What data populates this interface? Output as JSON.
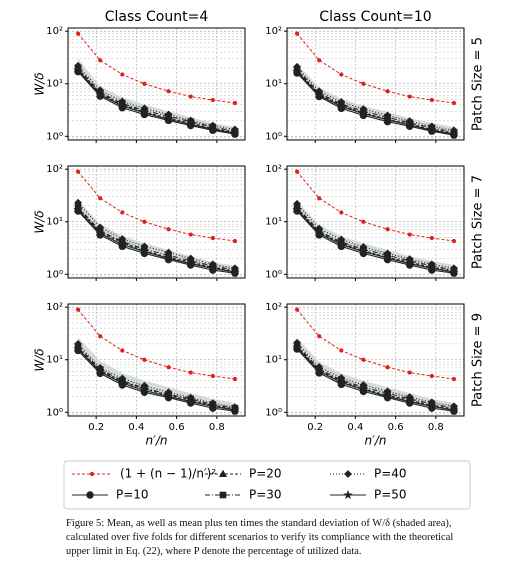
{
  "columns": [
    "Class Count=4",
    "Class Count=10"
  ],
  "rows": [
    "Patch Size = 5",
    "Patch Size = 7",
    "Patch Size = 9"
  ],
  "ylabel": "W/δ",
  "xlabel": "n′/n",
  "legend": [
    {
      "name": "(1 + (n − 1)/n′)²",
      "color": "#e0201b",
      "marker": "dot",
      "dash": "3,2"
    },
    {
      "name": "P=10",
      "color": "#222222",
      "marker": "circle",
      "dash": ""
    },
    {
      "name": "P=20",
      "color": "#222222",
      "marker": "triangle",
      "dash": "3,2"
    },
    {
      "name": "P=30",
      "color": "#222222",
      "marker": "square",
      "dash": "5,2,1,2"
    },
    {
      "name": "P=40",
      "color": "#222222",
      "marker": "diamond",
      "dash": "1,2"
    },
    {
      "name": "P=50",
      "color": "#222222",
      "marker": "star",
      "dash": ""
    }
  ],
  "band_color": "#c9d2d6",
  "caption": "Figure 5: Mean, as well as mean plus ten times the standard deviation of W/δ (shaded area), calculated over five folds for different scenarios to verify its compliance with the theoretical upper limit in Eq. (22), where P denote the percentage of utilized data.",
  "chart_data": [
    {
      "type": "line",
      "log_y": true,
      "grid": true,
      "x": [
        0.11,
        0.22,
        0.33,
        0.44,
        0.56,
        0.67,
        0.78,
        0.89
      ],
      "xlim": [
        0.06,
        0.94
      ],
      "xticks": [
        0.2,
        0.4,
        0.6,
        0.8
      ],
      "ylim": [
        0.85,
        115
      ],
      "yticks": [
        {
          "value": 1,
          "label": "10⁰"
        },
        {
          "value": 10,
          "label": "10¹"
        },
        {
          "value": 100,
          "label": "10²"
        }
      ],
      "band": [
        30,
        9,
        5.5,
        4,
        3,
        2.3,
        1.8,
        1.5
      ],
      "series": [
        {
          "values": [
            90,
            28,
            15,
            10,
            7.2,
            5.7,
            4.9,
            4.3
          ]
        },
        {
          "values": [
            17,
            5.8,
            3.5,
            2.6,
            2.0,
            1.6,
            1.3,
            1.1
          ]
        },
        {
          "values": [
            19,
            6.5,
            4.0,
            2.9,
            2.2,
            1.8,
            1.4,
            1.2
          ]
        },
        {
          "values": [
            20,
            6.8,
            4.2,
            3.1,
            2.4,
            1.9,
            1.5,
            1.25
          ]
        },
        {
          "values": [
            22,
            7.5,
            4.6,
            3.4,
            2.6,
            2.0,
            1.6,
            1.35
          ]
        },
        {
          "values": [
            18,
            6.2,
            3.8,
            2.8,
            2.1,
            1.7,
            1.35,
            1.15
          ]
        }
      ]
    },
    {
      "type": "line",
      "log_y": true,
      "grid": true,
      "x": [
        0.11,
        0.22,
        0.33,
        0.44,
        0.56,
        0.67,
        0.78,
        0.89
      ],
      "xlim": [
        0.06,
        0.94
      ],
      "xticks": [
        0.2,
        0.4,
        0.6,
        0.8
      ],
      "ylim": [
        0.85,
        115
      ],
      "yticks": [
        {
          "value": 1,
          "label": "10⁰"
        },
        {
          "value": 10,
          "label": "10¹"
        },
        {
          "value": 100,
          "label": "10²"
        }
      ],
      "band": [
        24,
        8.5,
        5.2,
        3.8,
        2.9,
        2.2,
        1.8,
        1.5
      ],
      "series": [
        {
          "values": [
            90,
            28,
            15,
            10,
            7.2,
            5.7,
            4.9,
            4.3
          ]
        },
        {
          "values": [
            16,
            5.7,
            3.4,
            2.5,
            1.9,
            1.55,
            1.25,
            1.05
          ]
        },
        {
          "values": [
            18,
            6.3,
            3.9,
            2.8,
            2.1,
            1.7,
            1.35,
            1.15
          ]
        },
        {
          "values": [
            19,
            6.6,
            4.1,
            3.0,
            2.3,
            1.8,
            1.45,
            1.2
          ]
        },
        {
          "values": [
            21,
            7.2,
            4.5,
            3.3,
            2.5,
            1.95,
            1.55,
            1.3
          ]
        },
        {
          "values": [
            17,
            6.0,
            3.7,
            2.7,
            2.05,
            1.65,
            1.3,
            1.1
          ]
        }
      ]
    },
    {
      "type": "line",
      "log_y": true,
      "grid": true,
      "x": [
        0.11,
        0.22,
        0.33,
        0.44,
        0.56,
        0.67,
        0.78,
        0.89
      ],
      "xlim": [
        0.06,
        0.94
      ],
      "xticks": [
        0.2,
        0.4,
        0.6,
        0.8
      ],
      "ylim": [
        0.85,
        115
      ],
      "yticks": [
        {
          "value": 1,
          "label": "10⁰"
        },
        {
          "value": 10,
          "label": "10¹"
        },
        {
          "value": 100,
          "label": "10²"
        }
      ],
      "band": [
        26,
        9,
        5.4,
        3.9,
        2.9,
        2.2,
        1.7,
        1.45
      ],
      "series": [
        {
          "values": [
            90,
            28,
            15,
            10,
            7.2,
            5.7,
            4.9,
            4.3
          ]
        },
        {
          "values": [
            16,
            5.6,
            3.4,
            2.5,
            1.9,
            1.5,
            1.2,
            1.05
          ]
        },
        {
          "values": [
            18,
            6.4,
            4.0,
            2.8,
            2.1,
            1.7,
            1.35,
            1.15
          ]
        },
        {
          "values": [
            19,
            6.7,
            4.2,
            3.0,
            2.3,
            1.8,
            1.45,
            1.2
          ]
        },
        {
          "values": [
            23,
            7.8,
            4.7,
            3.4,
            2.6,
            2.0,
            1.55,
            1.3
          ]
        },
        {
          "values": [
            17,
            6.0,
            3.7,
            2.7,
            2.0,
            1.6,
            1.3,
            1.1
          ]
        }
      ]
    },
    {
      "type": "line",
      "log_y": true,
      "grid": true,
      "x": [
        0.11,
        0.22,
        0.33,
        0.44,
        0.56,
        0.67,
        0.78,
        0.89
      ],
      "xlim": [
        0.06,
        0.94
      ],
      "xticks": [
        0.2,
        0.4,
        0.6,
        0.8
      ],
      "ylim": [
        0.85,
        115
      ],
      "yticks": [
        {
          "value": 1,
          "label": "10⁰"
        },
        {
          "value": 10,
          "label": "10¹"
        },
        {
          "value": 100,
          "label": "10²"
        }
      ],
      "band": [
        25,
        8.8,
        5.3,
        3.9,
        2.9,
        2.2,
        1.8,
        1.5
      ],
      "series": [
        {
          "values": [
            90,
            28,
            15,
            10,
            7.2,
            5.7,
            4.9,
            4.3
          ]
        },
        {
          "values": [
            16,
            5.6,
            3.4,
            2.5,
            1.9,
            1.5,
            1.2,
            1.05
          ]
        },
        {
          "values": [
            18,
            6.3,
            3.9,
            2.8,
            2.1,
            1.7,
            1.35,
            1.15
          ]
        },
        {
          "values": [
            19,
            6.6,
            4.1,
            3.0,
            2.3,
            1.8,
            1.45,
            1.2
          ]
        },
        {
          "values": [
            22,
            7.4,
            4.6,
            3.3,
            2.5,
            1.95,
            1.55,
            1.3
          ]
        },
        {
          "values": [
            17,
            6.0,
            3.7,
            2.7,
            2.05,
            1.6,
            1.3,
            1.1
          ]
        }
      ]
    },
    {
      "type": "line",
      "log_y": true,
      "grid": true,
      "x": [
        0.11,
        0.22,
        0.33,
        0.44,
        0.56,
        0.67,
        0.78,
        0.89
      ],
      "xlim": [
        0.06,
        0.94
      ],
      "xticks": [
        0.2,
        0.4,
        0.6,
        0.8
      ],
      "ylim": [
        0.85,
        115
      ],
      "yticks": [
        {
          "value": 1,
          "label": "10⁰"
        },
        {
          "value": 10,
          "label": "10¹"
        },
        {
          "value": 100,
          "label": "10²"
        }
      ],
      "band": [
        27,
        9.5,
        5.6,
        4,
        3,
        2.3,
        1.8,
        1.5
      ],
      "series": [
        {
          "values": [
            90,
            28,
            15,
            10,
            7.2,
            5.7,
            4.9,
            4.3
          ]
        },
        {
          "values": [
            15,
            5.5,
            3.3,
            2.4,
            1.9,
            1.5,
            1.2,
            1.05
          ]
        },
        {
          "values": [
            17,
            6.2,
            3.8,
            2.8,
            2.1,
            1.7,
            1.35,
            1.15
          ]
        },
        {
          "values": [
            18,
            6.5,
            4.0,
            2.9,
            2.2,
            1.8,
            1.4,
            1.2
          ]
        },
        {
          "values": [
            20,
            7.0,
            4.4,
            3.2,
            2.4,
            1.9,
            1.5,
            1.25
          ]
        },
        {
          "values": [
            16,
            5.9,
            3.6,
            2.6,
            2.0,
            1.6,
            1.3,
            1.1
          ]
        }
      ]
    },
    {
      "type": "line",
      "log_y": true,
      "grid": true,
      "x": [
        0.11,
        0.22,
        0.33,
        0.44,
        0.56,
        0.67,
        0.78,
        0.89
      ],
      "xlim": [
        0.06,
        0.94
      ],
      "xticks": [
        0.2,
        0.4,
        0.6,
        0.8
      ],
      "ylim": [
        0.85,
        115
      ],
      "yticks": [
        {
          "value": 1,
          "label": "10⁰"
        },
        {
          "value": 10,
          "label": "10¹"
        },
        {
          "value": 100,
          "label": "10²"
        }
      ],
      "band": [
        26,
        9.2,
        5.5,
        4,
        3,
        2.3,
        1.8,
        1.5
      ],
      "series": [
        {
          "values": [
            90,
            28,
            15,
            10,
            7.2,
            5.7,
            4.9,
            4.3
          ]
        },
        {
          "values": [
            16,
            5.6,
            3.4,
            2.5,
            1.9,
            1.5,
            1.2,
            1.05
          ]
        },
        {
          "values": [
            18,
            6.3,
            3.9,
            2.8,
            2.1,
            1.7,
            1.35,
            1.15
          ]
        },
        {
          "values": [
            19,
            6.6,
            4.1,
            3.0,
            2.3,
            1.8,
            1.45,
            1.2
          ]
        },
        {
          "values": [
            21,
            7.3,
            4.5,
            3.3,
            2.5,
            1.95,
            1.55,
            1.3
          ]
        },
        {
          "values": [
            17,
            6.0,
            3.7,
            2.7,
            2.0,
            1.6,
            1.3,
            1.1
          ]
        }
      ]
    }
  ]
}
